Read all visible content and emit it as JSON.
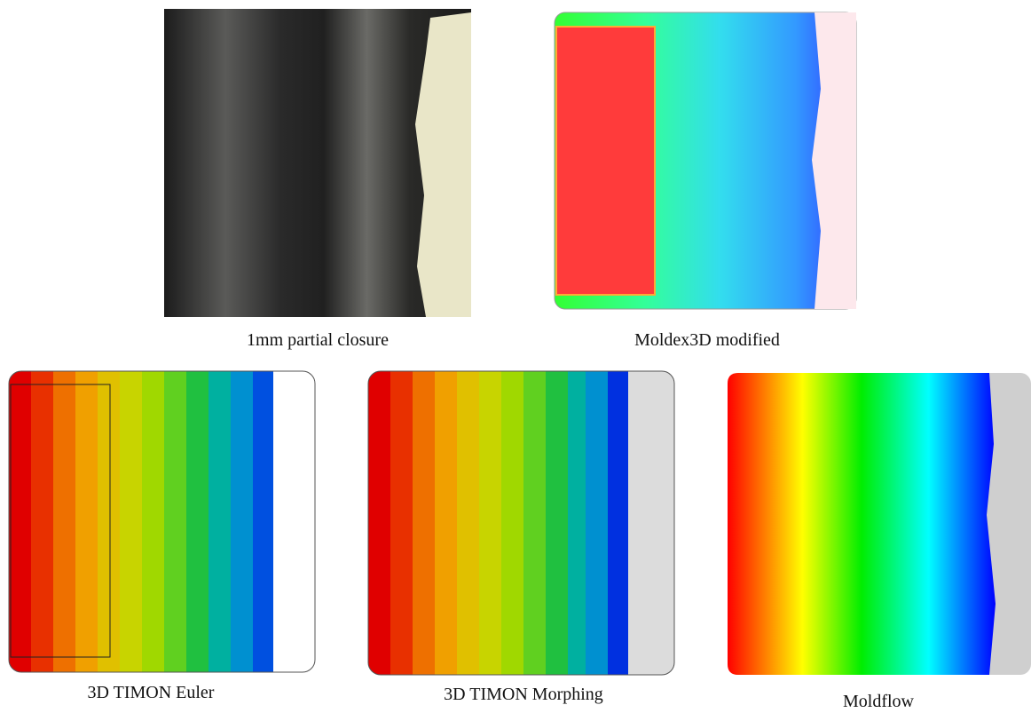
{
  "panels": [
    {
      "caption": "1mm partial closure"
    },
    {
      "caption": "Moldex3D modified"
    },
    {
      "caption": "3D TIMON Euler"
    },
    {
      "caption": "3D TIMON Morphing"
    },
    {
      "caption": "Moldflow"
    }
  ]
}
